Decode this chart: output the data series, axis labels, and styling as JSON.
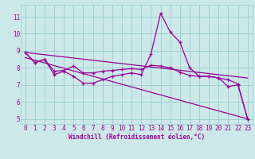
{
  "xlabel": "Windchill (Refroidissement éolien,°C)",
  "bg_color": "#cce8e8",
  "grid_color": "#99cccc",
  "line_color": "#990099",
  "xlim": [
    -0.5,
    23.5
  ],
  "ylim": [
    4.7,
    11.7
  ],
  "xticks": [
    0,
    1,
    2,
    3,
    4,
    5,
    6,
    7,
    8,
    9,
    10,
    11,
    12,
    13,
    14,
    15,
    16,
    17,
    18,
    19,
    20,
    21,
    22,
    23
  ],
  "yticks": [
    5,
    6,
    7,
    8,
    9,
    10,
    11
  ],
  "series0_x": [
    0,
    1,
    2,
    3,
    4,
    5,
    6,
    7,
    8,
    9,
    10,
    11,
    12,
    13,
    14,
    15,
    16,
    17,
    18,
    19,
    20,
    21,
    22,
    23
  ],
  "series0_y": [
    8.9,
    8.3,
    8.5,
    7.6,
    7.8,
    7.5,
    7.1,
    7.1,
    7.3,
    7.5,
    7.6,
    7.7,
    7.6,
    8.8,
    11.2,
    10.1,
    9.5,
    8.0,
    7.5,
    7.5,
    7.4,
    6.9,
    7.0,
    5.0
  ],
  "series1_x": [
    0,
    1,
    2,
    3,
    4,
    5,
    6,
    7,
    8,
    9,
    10,
    11,
    12,
    13,
    14,
    15,
    16,
    17,
    18,
    19,
    20,
    21,
    22,
    23
  ],
  "series1_y": [
    8.9,
    8.3,
    8.5,
    7.8,
    7.85,
    8.1,
    7.7,
    7.7,
    7.8,
    7.85,
    7.9,
    7.95,
    7.9,
    8.15,
    8.1,
    8.0,
    7.75,
    7.55,
    7.5,
    7.5,
    7.4,
    7.3,
    7.05,
    5.0
  ],
  "line2_x": [
    0,
    23
  ],
  "line2_y": [
    8.9,
    7.4
  ],
  "line3_x": [
    0,
    23
  ],
  "line3_y": [
    8.6,
    5.0
  ]
}
